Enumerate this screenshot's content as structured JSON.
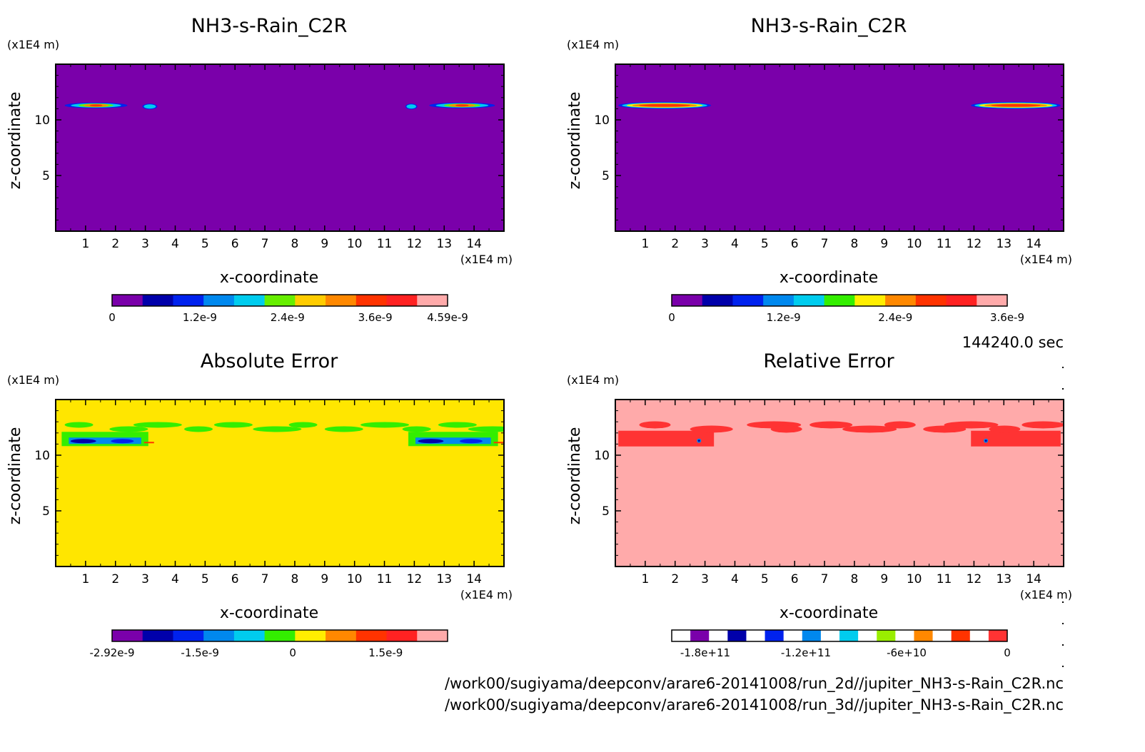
{
  "chart_data": [
    {
      "type": "heatmap",
      "title": "NH3-s-Rain_C2R",
      "xlabel": "x-coordinate",
      "ylabel": "z-coordinate",
      "x_unit": "(x1E4 m)",
      "y_unit": "(x1E4 m)",
      "xlim": [
        0,
        15
      ],
      "ylim": [
        0,
        15
      ],
      "x_ticks": [
        "1",
        "2",
        "3",
        "4",
        "5",
        "6",
        "7",
        "8",
        "9",
        "10",
        "11",
        "12",
        "13",
        "14"
      ],
      "y_ticks": [
        "5",
        "10"
      ],
      "background_color": "#7a00aa",
      "colorbar": {
        "colors": [
          "#7a00aa",
          "#0000aa",
          "#0022ee",
          "#0088ee",
          "#00ccee",
          "#66ee00",
          "#ffcc00",
          "#ff8800",
          "#ff3300",
          "#ff2222",
          "#ffaaaa"
        ],
        "labels": [
          "0",
          "1.2e-9",
          "2.4e-9",
          "3.6e-9",
          "4.59e-9"
        ],
        "label_values": [
          0,
          1.2e-09,
          2.4e-09,
          3.6e-09,
          4.59e-09
        ],
        "range": [
          0,
          4.59e-09
        ]
      },
      "features": [
        {
          "x_range": [
            0.3,
            2.4
          ],
          "z": 11.3
        },
        {
          "x_range": [
            2.9,
            3.4
          ],
          "z": 11.2
        },
        {
          "x_range": [
            11.7,
            12.1
          ],
          "z": 11.2
        },
        {
          "x_range": [
            12.5,
            14.7
          ],
          "z": 11.3
        }
      ]
    },
    {
      "type": "heatmap",
      "title": "NH3-s-Rain_C2R",
      "xlabel": "x-coordinate",
      "ylabel": "z-coordinate",
      "x_unit": "(x1E4 m)",
      "y_unit": "(x1E4 m)",
      "xlim": [
        0,
        15
      ],
      "ylim": [
        0,
        15
      ],
      "x_ticks": [
        "1",
        "2",
        "3",
        "4",
        "5",
        "6",
        "7",
        "8",
        "9",
        "10",
        "11",
        "12",
        "13",
        "14"
      ],
      "y_ticks": [
        "5",
        "10"
      ],
      "background_color": "#7a00aa",
      "colorbar": {
        "colors": [
          "#7a00aa",
          "#0000aa",
          "#0022ee",
          "#0088ee",
          "#00ccee",
          "#33ee00",
          "#ffee00",
          "#ff8800",
          "#ff3300",
          "#ff2222",
          "#ffaaaa"
        ],
        "labels": [
          "0",
          "1.2e-9",
          "2.4e-9",
          "3.6e-9"
        ],
        "label_values": [
          0,
          1.2e-09,
          2.4e-09,
          3.6e-09
        ],
        "range": [
          0,
          3.6e-09
        ]
      },
      "features": [
        {
          "x_range": [
            0.1,
            3.2
          ],
          "z": 11.3
        },
        {
          "x_range": [
            11.9,
            14.9
          ],
          "z": 11.3
        }
      ]
    },
    {
      "type": "heatmap",
      "title": "Absolute Error",
      "xlabel": "x-coordinate",
      "ylabel": "z-coordinate",
      "x_unit": "(x1E4 m)",
      "y_unit": "(x1E4 m)",
      "xlim": [
        0,
        15
      ],
      "ylim": [
        0,
        15
      ],
      "x_ticks": [
        "1",
        "2",
        "3",
        "4",
        "5",
        "6",
        "7",
        "8",
        "9",
        "10",
        "11",
        "12",
        "13",
        "14"
      ],
      "y_ticks": [
        "5",
        "10"
      ],
      "background_color": "#ffe600",
      "colorbar": {
        "colors": [
          "#7a00aa",
          "#0000aa",
          "#0022ee",
          "#0088ee",
          "#00ccee",
          "#33ee00",
          "#ffee00",
          "#ff8800",
          "#ff3300",
          "#ff2222",
          "#ffaaaa"
        ],
        "labels": [
          "-2.92e-9",
          "-1.5e-9",
          "0",
          "1.5e-9"
        ],
        "label_values": [
          -2.92e-09,
          -1.5e-09,
          0,
          1.5e-09
        ],
        "range": [
          -2.92e-09,
          2.5e-09
        ]
      },
      "features": [
        {
          "x_range": [
            0.2,
            3.1
          ],
          "z": 11.2
        },
        {
          "x_range": [
            11.8,
            14.8
          ],
          "z": 11.2
        },
        {
          "x_range": [
            0.3,
            14.7
          ],
          "z": 12.6
        }
      ]
    },
    {
      "type": "heatmap",
      "title": "Relative Error",
      "xlabel": "x-coordinate",
      "ylabel": "z-coordinate",
      "x_unit": "(x1E4 m)",
      "y_unit": "(x1E4 m)",
      "xlim": [
        0,
        15
      ],
      "ylim": [
        0,
        15
      ],
      "x_ticks": [
        "1",
        "2",
        "3",
        "4",
        "5",
        "6",
        "7",
        "8",
        "9",
        "10",
        "11",
        "12",
        "13",
        "14"
      ],
      "y_ticks": [
        "5",
        "10"
      ],
      "background_color": "#ffaaaa",
      "colorbar": {
        "colors": [
          "#ffffff",
          "#7a00aa",
          "#ffffff",
          "#0000aa",
          "#ffffff",
          "#0022ee",
          "#ffffff",
          "#0088ee",
          "#ffffff",
          "#00ccee",
          "#ffffff",
          "#99ee00",
          "#ffffff",
          "#ff8800",
          "#ffffff",
          "#ff3300",
          "#ffffff",
          "#ff3333"
        ],
        "labels": [
          "-1.8e+11",
          "-1.2e+11",
          "-6e+10",
          "0"
        ],
        "label_values": [
          -180000000000.0,
          -120000000000.0,
          -60000000000.0,
          0
        ],
        "range": [
          -200000000000.0,
          0
        ]
      },
      "features": [
        {
          "x_range": [
            0.1,
            3.3
          ],
          "z": 11.3
        },
        {
          "x_range": [
            11.9,
            14.9
          ],
          "z": 11.3
        },
        {
          "x_range": [
            0.8,
            14.5
          ],
          "z": 12.6
        }
      ]
    }
  ],
  "time_label": "144240.0 sec",
  "file_paths": [
    "/work00/sugiyama/deepconv/arare6-20141008/run_2d//jupiter_NH3-s-Rain_C2R.nc",
    "/work00/sugiyama/deepconv/arare6-20141008/run_3d//jupiter_NH3-s-Rain_C2R.nc"
  ]
}
